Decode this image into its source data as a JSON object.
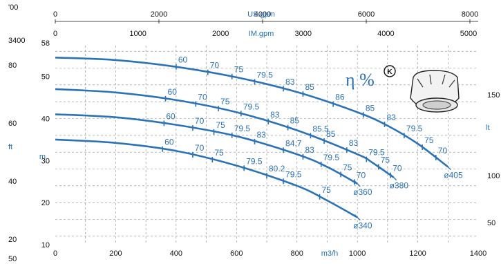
{
  "chart_data": {
    "type": "line",
    "title": "",
    "xlabel": "m3/h",
    "ylabel": "m",
    "xlim": [
      0,
      1400
    ],
    "ylim": [
      10,
      58
    ],
    "x_ticks": [
      0,
      200,
      400,
      600,
      800,
      1000,
      1200,
      1400
    ],
    "x_tick_labels": [
      "0",
      "200",
      "400",
      "600",
      "800",
      "1000",
      "1200",
      "1400"
    ],
    "y_ticks": [
      10,
      20,
      30,
      40,
      50,
      58
    ],
    "y_tick_labels": [
      "10",
      "20",
      "30",
      "40",
      "50",
      "58"
    ],
    "y_unit_label": "m",
    "secondary_axes": {
      "us_gpm": {
        "label": "US.gpm",
        "ticks": [
          "0",
          "2000",
          "4000",
          "6000",
          "8000"
        ],
        "values": [
          0,
          2000,
          4000,
          6000,
          8000
        ]
      },
      "im_gpm": {
        "label": "IM.gpm",
        "ticks": [
          "0",
          "1000",
          "2000",
          "3000",
          "4000",
          "5000"
        ],
        "values": [
          0,
          1000,
          2000,
          3000,
          4000,
          5000
        ]
      },
      "ft": {
        "label": "ft",
        "ticks": [
          "20",
          "40",
          "60",
          "80",
          "100",
          "60",
          "40",
          "20"
        ],
        "left_labels": [
          "'00",
          "3400",
          "80",
          "60",
          "ft",
          "40",
          "20",
          "50"
        ]
      },
      "lt": {
        "label": "lt",
        "ticks": [
          "150",
          "100",
          "50"
        ],
        "values": [
          150,
          100,
          50
        ]
      }
    },
    "efficiency_symbol": "η %",
    "badge": "K",
    "series": [
      {
        "name": "ø405",
        "x": [
          0,
          200,
          400,
          600,
          800,
          1000,
          1100,
          1200,
          1300
        ],
        "y": [
          54.5,
          53.9,
          52.3,
          49.8,
          46.3,
          41.5,
          38.3,
          34.0,
          28.5
        ],
        "efficiency": [
          {
            "label": "60",
            "x": 400
          },
          {
            "label": "70",
            "x": 505
          },
          {
            "label": "75",
            "x": 585
          },
          {
            "label": "79.5",
            "x": 660
          },
          {
            "label": "83",
            "x": 755
          },
          {
            "label": "85",
            "x": 820
          },
          {
            "label": "86",
            "x": 920
          },
          {
            "label": "85",
            "x": 1020
          },
          {
            "label": "83",
            "x": 1090
          },
          {
            "label": "79.5",
            "x": 1155
          },
          {
            "label": "75",
            "x": 1215
          },
          {
            "label": "70",
            "x": 1260
          }
        ]
      },
      {
        "name": "ø380",
        "x": [
          0,
          200,
          400,
          600,
          800,
          1000,
          1050,
          1120
        ],
        "y": [
          47.0,
          46.2,
          44.4,
          41.5,
          37.2,
          31.5,
          29.5,
          26.0
        ],
        "efficiency": [
          {
            "label": "60",
            "x": 365
          },
          {
            "label": "70",
            "x": 465
          },
          {
            "label": "75",
            "x": 540
          },
          {
            "label": "79.5",
            "x": 615
          },
          {
            "label": "83",
            "x": 705
          },
          {
            "label": "85",
            "x": 770
          },
          {
            "label": "85.5",
            "x": 845
          },
          {
            "label": "85",
            "x": 890
          },
          {
            "label": "83",
            "x": 965
          },
          {
            "label": "79.5",
            "x": 1030
          },
          {
            "label": "75",
            "x": 1070
          },
          {
            "label": "70",
            "x": 1110
          }
        ]
      },
      {
        "name": "ø360",
        "x": [
          0,
          200,
          400,
          600,
          800,
          900,
          1000
        ],
        "y": [
          41.0,
          40.3,
          38.5,
          35.8,
          31.5,
          28.5,
          24.5
        ],
        "efficiency": [
          {
            "label": "60",
            "x": 360
          },
          {
            "label": "70",
            "x": 455
          },
          {
            "label": "75",
            "x": 525
          },
          {
            "label": "79.5",
            "x": 585
          },
          {
            "label": "83",
            "x": 660
          },
          {
            "label": "84.7",
            "x": 755
          },
          {
            "label": "83",
            "x": 820
          },
          {
            "label": "79.5",
            "x": 880
          },
          {
            "label": "75",
            "x": 945
          },
          {
            "label": "70",
            "x": 990
          }
        ]
      },
      {
        "name": "ø340",
        "x": [
          0,
          200,
          400,
          600,
          800,
          900,
          1000
        ],
        "y": [
          35.0,
          34.2,
          32.3,
          28.8,
          24.0,
          20.5,
          16.5
        ],
        "efficiency": [
          {
            "label": "60",
            "x": 355
          },
          {
            "label": "70",
            "x": 455
          },
          {
            "label": "75",
            "x": 520
          },
          {
            "label": "79.5",
            "x": 625
          },
          {
            "label": "80.2",
            "x": 700
          },
          {
            "label": "79.5",
            "x": 755
          },
          {
            "label": "75",
            "x": 875
          }
        ]
      }
    ]
  }
}
